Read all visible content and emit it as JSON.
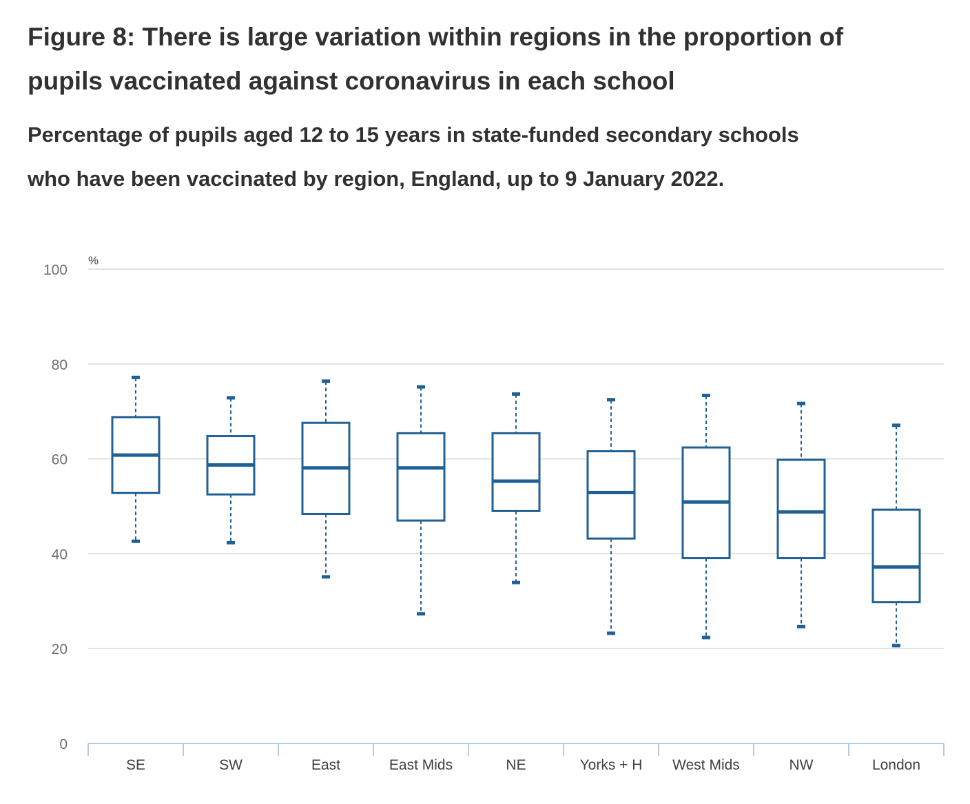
{
  "title": "Figure 8: There is large variation within regions in the proportion of pupils vaccinated against coronavirus in each school",
  "subtitle": "Percentage of pupils aged 12 to 15 years in state-funded secondary schools who have been vaccinated by region, England, up to 9 January 2022.",
  "colors": {
    "box": "#206095",
    "grid": "#d9d9d9",
    "axis": "#b3cde0"
  },
  "chart_data": {
    "type": "boxplot",
    "y_unit_label": "%",
    "ylim": [
      0,
      100
    ],
    "y_ticks": [
      0,
      20,
      40,
      60,
      80,
      100
    ],
    "grid": true,
    "categories": [
      "SE",
      "SW",
      "East",
      "East Mids",
      "NE",
      "Yorks + H",
      "West Mids",
      "NW",
      "London"
    ],
    "series": [
      {
        "min": 42.7,
        "q1": 52.8,
        "median": 60.8,
        "q3": 68.8,
        "max": 77.1
      },
      {
        "min": 42.4,
        "q1": 52.5,
        "median": 58.7,
        "q3": 64.8,
        "max": 72.8
      },
      {
        "min": 35.2,
        "q1": 48.4,
        "median": 58.1,
        "q3": 67.6,
        "max": 76.3
      },
      {
        "min": 27.4,
        "q1": 47.0,
        "median": 58.1,
        "q3": 65.4,
        "max": 75.1
      },
      {
        "min": 34.0,
        "q1": 49.0,
        "median": 55.3,
        "q3": 65.4,
        "max": 73.6
      },
      {
        "min": 23.3,
        "q1": 43.2,
        "median": 52.9,
        "q3": 61.6,
        "max": 72.4
      },
      {
        "min": 22.4,
        "q1": 39.1,
        "median": 50.9,
        "q3": 62.4,
        "max": 73.3
      },
      {
        "min": 24.7,
        "q1": 39.1,
        "median": 48.8,
        "q3": 59.8,
        "max": 71.6
      },
      {
        "min": 20.7,
        "q1": 29.8,
        "median": 37.2,
        "q3": 49.3,
        "max": 67.0
      }
    ]
  }
}
